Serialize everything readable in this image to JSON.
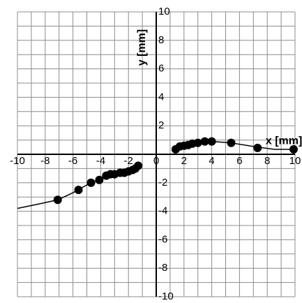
{
  "chart_data": {
    "type": "scatter",
    "title": "",
    "xlabel": "x [mm]",
    "ylabel": "y [mm]",
    "xlim": [
      -10,
      10
    ],
    "ylim": [
      -10,
      10
    ],
    "x_ticks": [
      -10,
      -8,
      -6,
      -4,
      -2,
      0,
      2,
      4,
      6,
      8,
      10
    ],
    "x_tick_labels": [
      "-10",
      "-8",
      "-6",
      "-4",
      "-2",
      "0",
      "2",
      "4",
      "6",
      "8",
      "10"
    ],
    "y_ticks": [
      -10,
      -8,
      -6,
      -4,
      -2,
      2,
      4,
      6,
      8,
      10
    ],
    "y_tick_labels": [
      "-10",
      "-8",
      "-6",
      "-4",
      "-2",
      "2",
      "4",
      "6",
      "8",
      "10"
    ],
    "minor_grid_step": 1,
    "grid": true,
    "colors": {
      "grid": "#8c8c8c",
      "axis": "#000000",
      "marker": "#000000",
      "line": "#000000"
    },
    "series": [
      {
        "marker": "circle",
        "points": [
          {
            "x": -7.1,
            "y": -3.2
          },
          {
            "x": -5.6,
            "y": -2.5
          },
          {
            "x": -4.7,
            "y": -2.0
          },
          {
            "x": -4.1,
            "y": -1.8
          },
          {
            "x": -3.6,
            "y": -1.5
          },
          {
            "x": -3.3,
            "y": -1.4
          },
          {
            "x": -3.0,
            "y": -1.4
          },
          {
            "x": -2.6,
            "y": -1.3
          },
          {
            "x": -2.3,
            "y": -1.3
          },
          {
            "x": -2.0,
            "y": -1.2
          },
          {
            "x": -1.7,
            "y": -1.1
          },
          {
            "x": -1.5,
            "y": -1.0
          },
          {
            "x": -1.3,
            "y": -0.8
          },
          {
            "x": 1.4,
            "y": 0.35
          },
          {
            "x": 1.7,
            "y": 0.55
          },
          {
            "x": 2.0,
            "y": 0.6
          },
          {
            "x": 2.3,
            "y": 0.65
          },
          {
            "x": 2.6,
            "y": 0.75
          },
          {
            "x": 3.0,
            "y": 0.8
          },
          {
            "x": 3.5,
            "y": 0.9
          },
          {
            "x": 4.0,
            "y": 0.9
          },
          {
            "x": 5.4,
            "y": 0.8
          },
          {
            "x": 7.3,
            "y": 0.45
          },
          {
            "x": 9.9,
            "y": 0.35
          }
        ]
      }
    ],
    "fit_curves": [
      {
        "points": [
          {
            "x": -10.0,
            "y": -3.8
          },
          {
            "x": -8.5,
            "y": -3.5
          },
          {
            "x": -7.1,
            "y": -3.2
          },
          {
            "x": -6.0,
            "y": -2.7
          },
          {
            "x": -5.0,
            "y": -2.15
          },
          {
            "x": -4.0,
            "y": -1.7
          },
          {
            "x": -3.0,
            "y": -1.4
          },
          {
            "x": -2.0,
            "y": -1.2
          },
          {
            "x": -1.3,
            "y": -0.8
          }
        ]
      },
      {
        "points": [
          {
            "x": 1.4,
            "y": 0.35
          },
          {
            "x": 2.0,
            "y": 0.6
          },
          {
            "x": 3.0,
            "y": 0.8
          },
          {
            "x": 4.0,
            "y": 0.9
          },
          {
            "x": 5.4,
            "y": 0.8
          },
          {
            "x": 7.3,
            "y": 0.5
          },
          {
            "x": 8.5,
            "y": 0.35
          },
          {
            "x": 10.0,
            "y": 0.35
          }
        ]
      }
    ]
  }
}
